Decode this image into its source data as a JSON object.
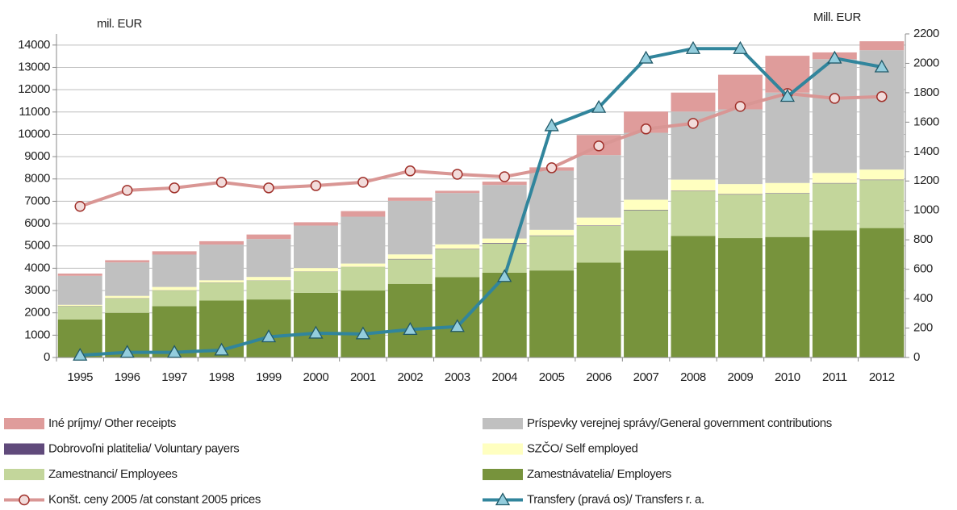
{
  "chart_data": {
    "type": "bar",
    "stacked": true,
    "ylabel": "mil. EUR",
    "y2label": "Mill. EUR",
    "categories": [
      "1995",
      "1996",
      "1997",
      "1998",
      "1999",
      "2000",
      "2001",
      "2002",
      "2003",
      "2004",
      "2005",
      "2006",
      "2007",
      "2008",
      "2009",
      "2010",
      "2011",
      "2012"
    ],
    "ylim": [
      0,
      14500
    ],
    "yticks": [
      0,
      1000,
      2000,
      3000,
      4000,
      5000,
      6000,
      7000,
      8000,
      9000,
      10000,
      11000,
      12000,
      13000,
      14000
    ],
    "y2lim": [
      0,
      2200
    ],
    "y2ticks": [
      0,
      200,
      400,
      600,
      800,
      1000,
      1200,
      1400,
      1600,
      1800,
      2000,
      2200
    ],
    "grid": true,
    "series": [
      {
        "name": "Zamestnávatelia/ Employers",
        "type": "bar",
        "color": "#77933c",
        "values": [
          1700,
          2000,
          2300,
          2550,
          2600,
          2900,
          3000,
          3300,
          3600,
          3800,
          3900,
          4250,
          4800,
          5450,
          5350,
          5400,
          5700,
          5800
        ]
      },
      {
        "name": "Zamestnanci/ Employees",
        "type": "bar",
        "color": "#c3d69b",
        "values": [
          600,
          650,
          700,
          800,
          850,
          950,
          1050,
          1100,
          1250,
          1300,
          1550,
          1650,
          1800,
          2000,
          1950,
          1950,
          2100,
          2150
        ]
      },
      {
        "name": "Dobrovoľni platitelia/ Voluntary payers",
        "type": "bar",
        "color": "#604a7b",
        "values": [
          10,
          10,
          10,
          10,
          10,
          10,
          10,
          20,
          20,
          30,
          20,
          20,
          20,
          20,
          20,
          20,
          20,
          20
        ]
      },
      {
        "name": "SZČO/ Self employed",
        "type": "bar",
        "color": "#ffffc0",
        "values": [
          50,
          100,
          150,
          100,
          150,
          150,
          150,
          200,
          200,
          200,
          250,
          350,
          450,
          500,
          450,
          450,
          450,
          450
        ]
      },
      {
        "name": "Príspevky verejnej správy/General government contributions",
        "type": "bar",
        "color": "#c0c0c0",
        "values": [
          1300,
          1500,
          1450,
          1600,
          1700,
          1900,
          2100,
          2400,
          2300,
          2400,
          2650,
          2800,
          3000,
          3050,
          3350,
          4050,
          5100,
          5350
        ]
      },
      {
        "name": "Iné príjmy/ Other receipts",
        "type": "bar",
        "color": "#df9c9b",
        "values": [
          100,
          100,
          150,
          150,
          200,
          150,
          250,
          150,
          100,
          150,
          150,
          900,
          950,
          850,
          1550,
          1650,
          300,
          400
        ]
      },
      {
        "name": "Konšt. ceny 2005 /at constant 2005 prices",
        "type": "line",
        "marker": "circle",
        "color": "#d99694",
        "values": [
          6770,
          7490,
          7600,
          7850,
          7600,
          7700,
          7850,
          8360,
          8210,
          8100,
          8500,
          9480,
          10240,
          10490,
          11250,
          11830,
          11610,
          11690
        ]
      },
      {
        "name": "Transfery (pravá os)/ Transfers r. a.",
        "type": "line",
        "marker": "triangle",
        "axis": "y2",
        "color": "#31859c",
        "values": [
          15,
          35,
          35,
          50,
          140,
          165,
          160,
          190,
          210,
          550,
          1575,
          1700,
          2035,
          2100,
          2100,
          1775,
          2035,
          1975
        ]
      }
    ]
  }
}
